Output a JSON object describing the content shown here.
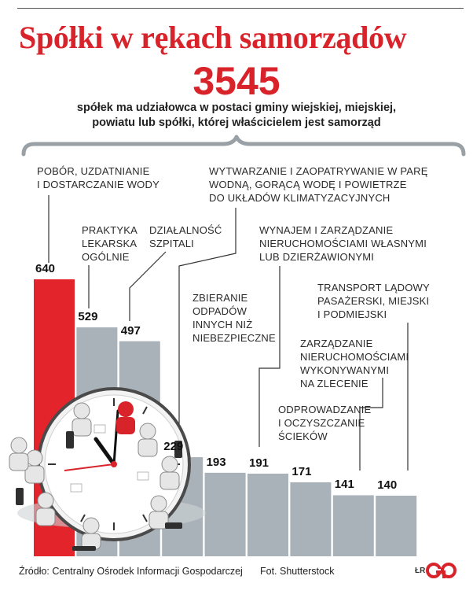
{
  "title": "Spółki w rękach samorządów",
  "headline_number": "3545",
  "subtitle_lines": [
    "spółek ma udziałowca w postaci gminy wiejskiej, miejskiej,",
    "powiatu lub spółki, której właścicielem jest samorząd"
  ],
  "chart_data": {
    "type": "bar",
    "categories": [
      [
        "POBÓR, UZDATNIANIE",
        "I DOSTARCZANIE WODY"
      ],
      [
        "PRAKTYKA",
        "LEKARSKA",
        "OGÓLNIE"
      ],
      [
        "DZIAŁALNOŚĆ",
        "SZPITALI"
      ],
      [
        "WYTWARZANIE I ZAOPATRYWANIE W PARĘ",
        "WODNĄ, GORĄCĄ WODĘ I POWIETRZE",
        "DO UKŁADÓW KLIMATYZACYJNYCH"
      ],
      [
        "ZBIERANIE",
        "ODPADÓW",
        "INNYCH NIŻ",
        "NIEBEZPIECZNE"
      ],
      [
        "WYNAJEM I ZARZĄDZANIE",
        "NIERUCHOMOŚCIAMI WŁASNYMI",
        "LUB DZIERŻAWIONYMI"
      ],
      [
        "ODPROWADZANIE",
        "I OCZYSZCZANIE",
        "ŚCIEKÓW"
      ],
      [
        "ZARZĄDZANIE",
        "NIERUCHOMOŚCIAMI",
        "WYKONYWANYMI",
        "NA ZLECENIE"
      ],
      [
        "TRANSPORT LĄDOWY",
        "PASAŻERSKI, MIEJSKI",
        "I PODMIEJSKI"
      ]
    ],
    "values": [
      640,
      529,
      497,
      229,
      193,
      191,
      171,
      141,
      140
    ],
    "value_labels": [
      "640",
      "529",
      "497",
      "229",
      "193",
      "191",
      "171",
      "141",
      "140"
    ],
    "highlight_index": 0,
    "ylim": [
      0,
      640
    ],
    "grid": false,
    "colors": {
      "highlight": "#e3242b",
      "bar": "#a9b2b9",
      "leader": "#333333"
    }
  },
  "footer": {
    "source": "Źródło: Centralny Ośrodek Informacji Gospodarczej",
    "photo": "Fot. Shutterstock",
    "initials": "ŁR"
  },
  "colors": {
    "accent": "#d9232a",
    "text": "#222222"
  },
  "icons": {
    "logo": "gp-logo",
    "photo": "business-meeting-clock-illustration",
    "brace": "curly-brace"
  }
}
